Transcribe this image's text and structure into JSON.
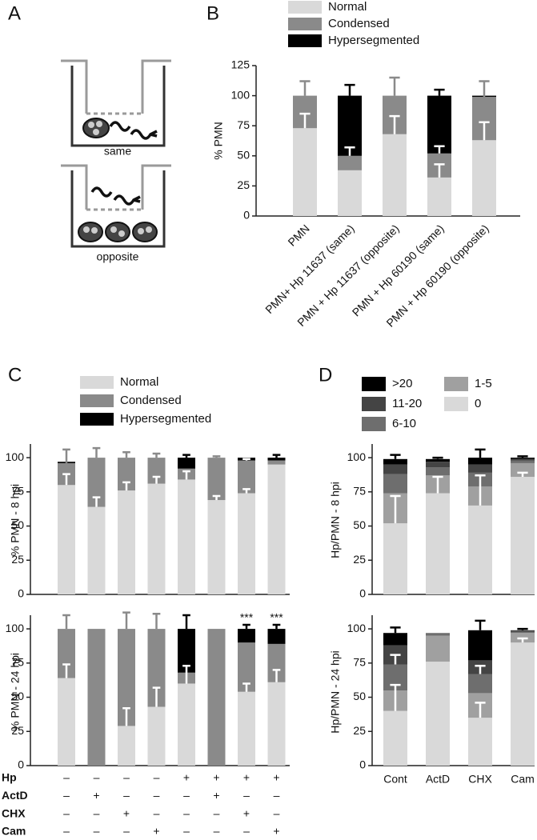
{
  "panel_a": {
    "label": "A",
    "captions": [
      "same",
      "opposite"
    ]
  },
  "chart_data": [
    {
      "type": "bar",
      "stacked": true,
      "panel": "B",
      "y_label": "% PMN",
      "categories": [
        "PMN",
        "PMN+ Hp 11637 (same)",
        "PMN + Hp 11637 (opposite)",
        "PMN + Hp 60190 (same)",
        "PMN + Hp 60190 (opposite)"
      ],
      "ylim": [
        0,
        125
      ],
      "yticks": [
        0,
        25,
        50,
        75,
        100,
        125
      ],
      "series": [
        {
          "name": "Normal",
          "color": "#d9d9d9",
          "values": [
            73,
            38,
            68,
            32,
            63
          ],
          "errors": [
            12,
            null,
            15,
            11,
            15
          ]
        },
        {
          "name": "Condensed",
          "color": "#8a8a8a",
          "values": [
            27,
            12,
            32,
            20,
            36
          ],
          "errors": [
            12,
            7,
            15,
            6,
            13
          ]
        },
        {
          "name": "Hypersegmented",
          "color": "#000000",
          "values": [
            0,
            50,
            0,
            48,
            1
          ],
          "errors": [
            null,
            9,
            null,
            5,
            null
          ]
        }
      ]
    },
    {
      "type": "bar",
      "stacked": true,
      "panel": "C",
      "y_label": "% PMN - 8 hpi",
      "ylim": [
        0,
        110
      ],
      "yticks": [
        0,
        25,
        50,
        75,
        100
      ],
      "series": [
        {
          "name": "Normal",
          "color": "#d9d9d9",
          "values": [
            80,
            64,
            76,
            81,
            84,
            69,
            74,
            95
          ],
          "errors": [
            8,
            7,
            6,
            5,
            6,
            3,
            3,
            null
          ]
        },
        {
          "name": "Condensed",
          "color": "#8a8a8a",
          "values": [
            16,
            36,
            24,
            19,
            8,
            31,
            24,
            3
          ],
          "errors": [
            10,
            7,
            4,
            3,
            null,
            1,
            1,
            null
          ]
        },
        {
          "name": "Hypersegmented",
          "color": "#000000",
          "values": [
            1,
            0,
            0,
            0,
            8,
            0,
            2,
            2
          ],
          "errors": [
            null,
            null,
            null,
            null,
            2,
            null,
            null,
            2
          ]
        }
      ]
    },
    {
      "type": "bar",
      "stacked": true,
      "y_label": "% PMN - 24 hpi",
      "ylim": [
        0,
        110
      ],
      "yticks": [
        0,
        25,
        50,
        75,
        100
      ],
      "series": [
        {
          "color": "#d9d9d9",
          "values": [
            64,
            0,
            29,
            43,
            60,
            0,
            54,
            61
          ],
          "errors": [
            10,
            null,
            13,
            14,
            13,
            null,
            6,
            9
          ]
        },
        {
          "color": "#8a8a8a",
          "values": [
            36,
            100,
            71,
            57,
            8,
            100,
            36,
            28
          ],
          "errors": [
            10,
            null,
            12,
            11,
            null,
            null,
            null,
            null
          ]
        },
        {
          "color": "#000000",
          "values": [
            0,
            0,
            0,
            0,
            32,
            0,
            10,
            11
          ],
          "errors": [
            null,
            null,
            null,
            null,
            10,
            null,
            3,
            3
          ]
        }
      ],
      "value_annotations": [
        null,
        null,
        null,
        null,
        null,
        null,
        "***",
        "***"
      ],
      "treatments": [
        {
          "name": "Hp",
          "values": [
            "–",
            "–",
            "–",
            "–",
            "+",
            "+",
            "+",
            "+"
          ]
        },
        {
          "name": "ActD",
          "values": [
            "–",
            "+",
            "–",
            "–",
            "–",
            "+",
            "–",
            "–"
          ]
        },
        {
          "name": "CHX",
          "values": [
            "–",
            "–",
            "+",
            "–",
            "–",
            "–",
            "+",
            "–"
          ]
        },
        {
          "name": "Cam",
          "values": [
            "–",
            "–",
            "–",
            "+",
            "–",
            "–",
            "–",
            "+"
          ]
        }
      ]
    },
    {
      "type": "bar",
      "stacked": true,
      "panel": "D",
      "y_label": "Hp/PMN - 8 hpi",
      "ylim": [
        0,
        110
      ],
      "yticks": [
        0,
        25,
        50,
        75,
        100
      ],
      "series": [
        {
          "name": ">20",
          "color": "#000000",
          "values": [
            4,
            2,
            5,
            1
          ],
          "errors": [
            3,
            1,
            6,
            1
          ]
        },
        {
          "name": "11-20",
          "color": "#444444",
          "values": [
            7,
            4,
            6,
            1
          ],
          "errors": [
            null,
            null,
            null,
            null
          ]
        },
        {
          "name": "6-10",
          "color": "#6e6e6e",
          "values": [
            14,
            6,
            10,
            2
          ],
          "errors": [
            null,
            null,
            null,
            null
          ]
        },
        {
          "name": "1-5",
          "color": "#a0a0a0",
          "values": [
            22,
            13,
            14,
            10
          ],
          "errors": [
            null,
            null,
            null,
            null
          ]
        },
        {
          "name": "0",
          "color": "#d9d9d9",
          "values": [
            52,
            74,
            65,
            86
          ],
          "errors": [
            20,
            12,
            22,
            3
          ]
        }
      ]
    },
    {
      "type": "bar",
      "stacked": true,
      "y_label": "Hp/PMN - 24 hpi",
      "categories": [
        "Cont",
        "ActD",
        "CHX",
        "Cam"
      ],
      "ylim": [
        0,
        110
      ],
      "yticks": [
        0,
        25,
        50,
        75,
        100
      ],
      "series": [
        {
          "color": "#000000",
          "values": [
            9,
            0,
            22,
            0
          ],
          "errors": [
            4,
            null,
            7,
            1
          ]
        },
        {
          "color": "#444444",
          "values": [
            14,
            0,
            10,
            1
          ],
          "errors": [
            null,
            null,
            null,
            null
          ]
        },
        {
          "color": "#6e6e6e",
          "values": [
            19,
            2,
            14,
            1
          ],
          "errors": [
            7,
            null,
            6,
            null
          ]
        },
        {
          "color": "#a0a0a0",
          "values": [
            15,
            19,
            18,
            7
          ],
          "errors": [
            null,
            null,
            null,
            null
          ]
        },
        {
          "color": "#d9d9d9",
          "values": [
            40,
            76,
            35,
            90
          ],
          "errors": [
            19,
            null,
            11,
            3
          ]
        }
      ]
    }
  ]
}
